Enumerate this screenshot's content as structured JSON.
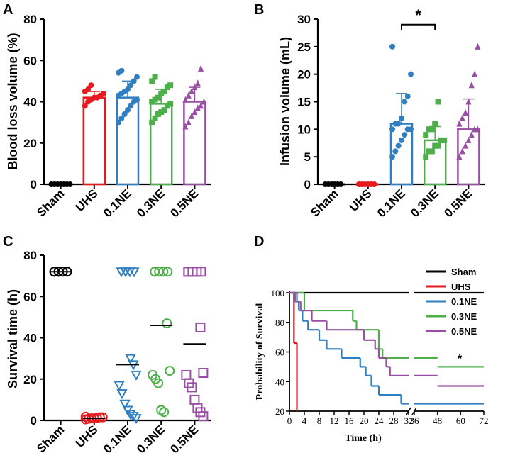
{
  "colors": {
    "Sham": "#000000",
    "UHS": "#e41a1c",
    "0.1NE": "#2f7fc1",
    "0.3NE": "#4daf4a",
    "0.5NE": "#984ea3"
  },
  "chart_data": [
    {
      "panel_label": "A",
      "type": "bar",
      "ylabel": "Blood loss volume (%)",
      "ylim": [
        0,
        80
      ],
      "yticks": [
        0,
        20,
        40,
        60,
        80
      ],
      "categories": [
        "Sham",
        "UHS",
        "0.1NE",
        "0.3NE",
        "0.5NE"
      ],
      "markers": [
        "circle",
        "circle",
        "circle",
        "square",
        "triangle"
      ],
      "bars": [
        {
          "mean": 0,
          "sd": 0,
          "points": [
            0,
            0,
            0,
            0,
            0,
            0,
            0,
            0
          ]
        },
        {
          "mean": 42,
          "sd": 3,
          "points": [
            38,
            40,
            41,
            42,
            42,
            43,
            44,
            45,
            46,
            48
          ]
        },
        {
          "mean": 42,
          "sd": 8,
          "points": [
            30,
            32,
            34,
            36,
            38,
            40,
            41,
            43,
            44,
            45,
            46,
            48,
            50,
            52,
            54,
            55
          ]
        },
        {
          "mean": 39,
          "sd": 7,
          "points": [
            30,
            32,
            34,
            35,
            36,
            38,
            39,
            40,
            41,
            42,
            44,
            45,
            47,
            48,
            50,
            52
          ]
        },
        {
          "mean": 40,
          "sd": 7,
          "points": [
            28,
            30,
            33,
            35,
            37,
            38,
            40,
            41,
            43,
            45,
            47,
            49,
            56
          ]
        }
      ]
    },
    {
      "panel_label": "B",
      "type": "bar",
      "ylabel": "Infusion volume (mL)",
      "ylim": [
        0,
        30
      ],
      "yticks": [
        0,
        5,
        10,
        15,
        20,
        25,
        30
      ],
      "categories": [
        "Sham",
        "UHS",
        "0.1NE",
        "0.3NE",
        "0.5NE"
      ],
      "markers": [
        "circle",
        "circle",
        "circle",
        "square",
        "triangle"
      ],
      "significance": {
        "from": "0.1NE",
        "to": "0.3NE",
        "label": "*"
      },
      "bars": [
        {
          "mean": 0,
          "sd": 0,
          "points": [
            0,
            0,
            0,
            0,
            0,
            0
          ]
        },
        {
          "mean": 0,
          "sd": 0,
          "points": [
            0,
            0,
            0,
            0,
            0,
            0
          ]
        },
        {
          "mean": 11,
          "sd": 5.5,
          "points": [
            5,
            6,
            7,
            8,
            9,
            10,
            10,
            10,
            11,
            11,
            12,
            15,
            16,
            20,
            25
          ]
        },
        {
          "mean": 8,
          "sd": 2.5,
          "points": [
            5,
            6,
            6,
            7,
            7,
            8,
            8,
            9,
            10,
            10,
            11,
            15
          ]
        },
        {
          "mean": 10,
          "sd": 5.5,
          "points": [
            5,
            6,
            7,
            8,
            9,
            10,
            10,
            11,
            12,
            13,
            15,
            18,
            20,
            25
          ]
        }
      ]
    },
    {
      "panel_label": "C",
      "type": "scatter",
      "ylabel": "Survival time (h)",
      "ylim": [
        0,
        80
      ],
      "yticks": [
        0,
        20,
        40,
        60,
        80
      ],
      "categories": [
        "Sham",
        "UHS",
        "0.1NE",
        "0.3NE",
        "0.5NE"
      ],
      "markers": [
        "circle-open",
        "circle-open",
        "triangle-down-open",
        "circle-open",
        "square-open"
      ],
      "groups": [
        {
          "median": 72,
          "points": [
            72,
            72,
            72,
            72,
            72,
            72
          ]
        },
        {
          "median": 1,
          "points": [
            0.5,
            0.8,
            1,
            1,
            1.2,
            1.5,
            1.5,
            1.8
          ]
        },
        {
          "median": 27,
          "points": [
            72,
            72,
            72,
            72,
            30,
            27,
            22,
            17,
            13,
            8,
            5,
            3,
            2,
            1
          ]
        },
        {
          "median": 46,
          "points": [
            72,
            72,
            72,
            72,
            72,
            47,
            24,
            22,
            20,
            18,
            5,
            4
          ]
        },
        {
          "median": 37,
          "points": [
            72,
            72,
            72,
            72,
            72,
            45,
            23,
            22,
            18,
            16,
            10,
            6,
            4,
            2
          ]
        }
      ]
    },
    {
      "panel_label": "D",
      "type": "line",
      "title": "",
      "xlabel": "Time (h)",
      "ylabel": "Probability of Survival",
      "ylim": [
        20,
        100
      ],
      "yticks": [
        20,
        40,
        60,
        80,
        100
      ],
      "xticks_left": [
        0,
        4,
        8,
        12,
        16,
        20,
        24,
        28,
        32
      ],
      "xticks_right": [
        36,
        48,
        60,
        72
      ],
      "axis_break": "32-36",
      "annotation": {
        "text": "*",
        "series": "0.3NE"
      },
      "series": [
        {
          "name": "Sham",
          "steps": [
            [
              0,
              100
            ],
            [
              72,
              100
            ]
          ]
        },
        {
          "name": "UHS",
          "steps": [
            [
              0,
              100
            ],
            [
              1.2,
              66
            ],
            [
              2,
              20
            ],
            [
              2,
              20
            ]
          ]
        },
        {
          "name": "0.1NE",
          "steps": [
            [
              0,
              100
            ],
            [
              1.5,
              94
            ],
            [
              2.5,
              88
            ],
            [
              3.5,
              81
            ],
            [
              5,
              75
            ],
            [
              8,
              68
            ],
            [
              10,
              62
            ],
            [
              14,
              56
            ],
            [
              19,
              50
            ],
            [
              20.5,
              44
            ],
            [
              22,
              37
            ],
            [
              24,
              31
            ],
            [
              30,
              25
            ],
            [
              72,
              25
            ]
          ]
        },
        {
          "name": "0.3NE",
          "steps": [
            [
              0,
              100
            ],
            [
              4,
              88
            ],
            [
              17,
              81
            ],
            [
              18,
              75
            ],
            [
              24,
              62
            ],
            [
              25,
              56
            ],
            [
              48,
              50
            ],
            [
              72,
              50
            ]
          ]
        },
        {
          "name": "0.5NE",
          "steps": [
            [
              0,
              100
            ],
            [
              2,
              94
            ],
            [
              3,
              88
            ],
            [
              6,
              81
            ],
            [
              10,
              75
            ],
            [
              20,
              68
            ],
            [
              23,
              62
            ],
            [
              24,
              56
            ],
            [
              26,
              50
            ],
            [
              27,
              44
            ],
            [
              48,
              37
            ],
            [
              72,
              37
            ]
          ]
        }
      ],
      "legend": [
        "Sham",
        "UHS",
        "0.1NE",
        "0.3NE",
        "0.5NE"
      ]
    }
  ]
}
